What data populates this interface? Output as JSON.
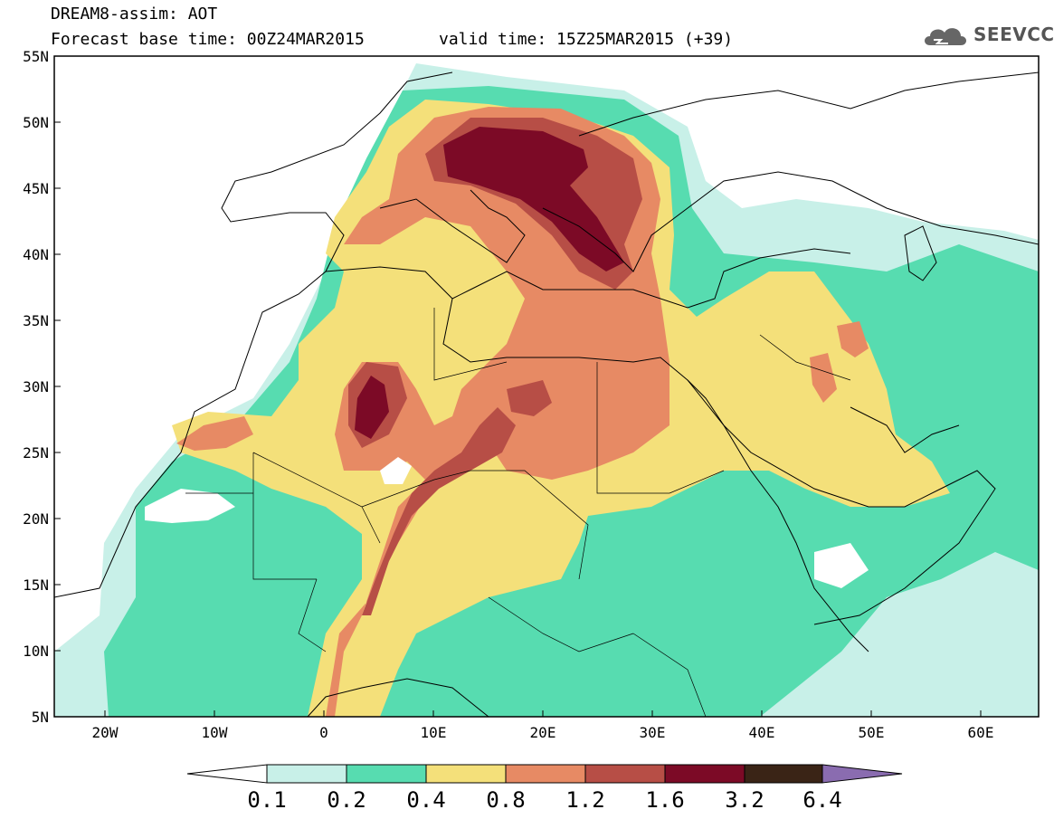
{
  "header": {
    "line1": "DREAM8-assim: AOT",
    "line2a": "Forecast base time: 00Z24MAR2015",
    "line2b": "valid time: 15Z25MAR2015 (+39)",
    "logo_text": "SEEVCCC"
  },
  "axes": {
    "lat_labels": [
      "55N",
      "50N",
      "45N",
      "40N",
      "35N",
      "30N",
      "25N",
      "20N",
      "15N",
      "10N",
      "5N"
    ],
    "lon_labels": [
      "20W",
      "10W",
      "0",
      "10E",
      "20E",
      "30E",
      "40E",
      "50E",
      "60E"
    ]
  },
  "colorbar": {
    "labels": [
      "0.1",
      "0.2",
      "0.4",
      "0.8",
      "1.2",
      "1.6",
      "3.2",
      "6.4"
    ],
    "colors": [
      "#c8f0e8",
      "#57dcb0",
      "#f4e07a",
      "#e78a64",
      "#b74e46",
      "#7c0a26",
      "#3a2416",
      "#8a6cb0"
    ]
  },
  "colors": {
    "c1": "#c8f0e8",
    "c2": "#57dcb0",
    "c3": "#f4e07a",
    "c4": "#e78a64",
    "c5": "#b74e46",
    "c6": "#7c0a26"
  }
}
